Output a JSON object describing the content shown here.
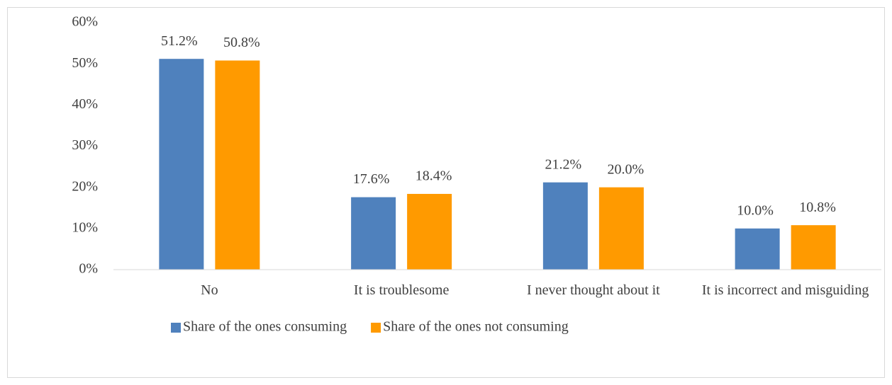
{
  "chart_data": {
    "type": "bar",
    "categories": [
      "No",
      "It is troublesome",
      "I never thought about it",
      "It is incorrect and misguiding"
    ],
    "series": [
      {
        "name": "Share of the ones consuming",
        "color": "#4f81bd",
        "values": [
          51.2,
          17.6,
          21.2,
          10.0
        ],
        "value_labels": [
          "51.2%",
          "17.6%",
          "21.2%",
          "10.0%"
        ]
      },
      {
        "name": "Share of the ones not consuming",
        "color": "#ff9a00",
        "values": [
          50.8,
          18.4,
          20.0,
          10.8
        ],
        "value_labels": [
          "50.8%",
          "18.4%",
          "20.0%",
          "10.8%"
        ]
      }
    ],
    "ylim": [
      0,
      60
    ],
    "yticks": [
      {
        "value": 0,
        "label": "0%"
      },
      {
        "value": 10,
        "label": "10%"
      },
      {
        "value": 20,
        "label": "20%"
      },
      {
        "value": 30,
        "label": "30%"
      },
      {
        "value": 40,
        "label": "40%"
      },
      {
        "value": 50,
        "label": "50%"
      },
      {
        "value": 60,
        "label": "60%"
      }
    ],
    "grid": false,
    "legend": "bottom"
  }
}
